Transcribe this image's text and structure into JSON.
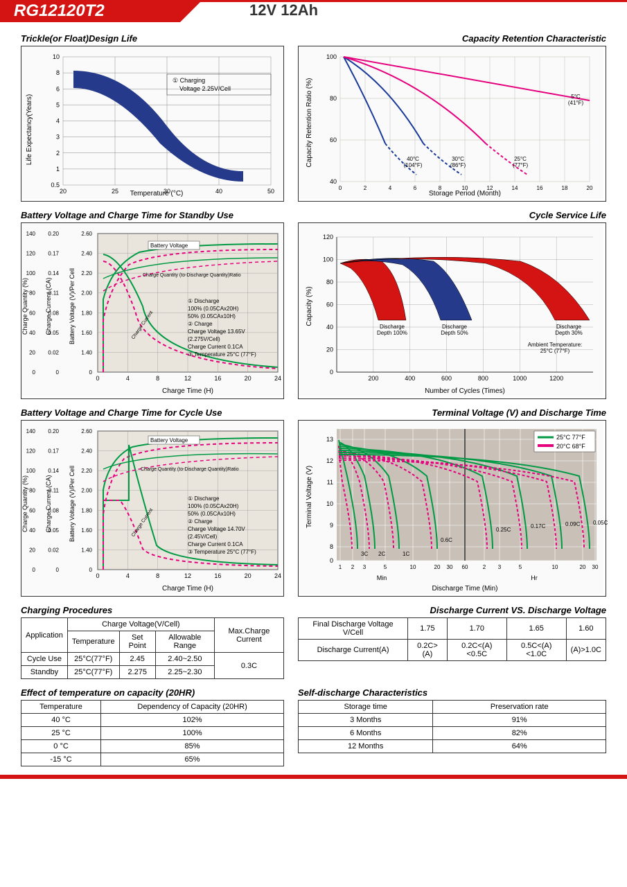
{
  "header": {
    "model": "RG12120T2",
    "spec": "12V 12Ah"
  },
  "chart1": {
    "title": "Trickle(or Float)Design Life",
    "ylabel": "Life Expectancy(Years)",
    "xlabel": "Temperature (°C)",
    "yticks": [
      "0.5",
      "1",
      "2",
      "3",
      "4",
      "5",
      "6",
      "8",
      "10"
    ],
    "xticks": [
      "20",
      "25",
      "30",
      "40",
      "50"
    ],
    "legend": "① Charging Voltage 2.25V/Cell",
    "band_color": "#263a8c",
    "grid_color": "#888",
    "bg_color": "#fafafa"
  },
  "chart2": {
    "title": "Capacity Retention Characteristic",
    "ylabel": "Capacity Retention Ratio (%)",
    "xlabel": "Storage Period (Month)",
    "yticks": [
      "40",
      "60",
      "80",
      "100"
    ],
    "xticks": [
      "0",
      "2",
      "4",
      "6",
      "8",
      "10",
      "12",
      "14",
      "16",
      "18",
      "20"
    ],
    "labels": {
      "l1": "40°C (104°F)",
      "l2": "30°C (86°F)",
      "l3": "25°C (77°F)",
      "l4": "5°C (41°F)"
    },
    "colors": {
      "c40": "#1a3a9a",
      "c30": "#1a3a9a",
      "c25": "#e5007e",
      "c5": "#e5007e"
    },
    "grid_color": "#bba"
  },
  "chart3": {
    "title": "Battery Voltage and Charge Time for Standby Use",
    "y1label": "Charge Quantity (%)",
    "y2label": "Charge Current (CA)",
    "y3label": "Battery Voltage (V)/Per Cell",
    "xlabel": "Charge Time (H)",
    "xticks": [
      "0",
      "4",
      "8",
      "12",
      "16",
      "20",
      "24"
    ],
    "y1ticks": [
      "0",
      "20",
      "40",
      "60",
      "80",
      "100",
      "120",
      "140"
    ],
    "y2ticks": [
      "0",
      "0.02",
      "0.05",
      "0.08",
      "0.11",
      "0.14",
      "0.17",
      "0.20"
    ],
    "y3ticks": [
      "0",
      "1.40",
      "1.60",
      "1.80",
      "2.00",
      "2.20",
      "2.40",
      "2.60"
    ],
    "labels": {
      "bv": "Battery Voltage",
      "cq": "Charge Quantity (to-Discharge Quantity)Ratio",
      "cc": "Charge Current"
    },
    "legend": {
      "l1": "① Discharge",
      "l1a": "100% (0.05CAx20H)",
      "l1b": "50% (0.05CAx10H)",
      "l2": "② Charge",
      "l2a": "Charge Voltage 13.65V",
      "l2b": "(2.275V/Cell)",
      "l2c": "Charge Current 0.1CA",
      "l3": "③ Temperature 25°C (77°F)"
    },
    "line_solid": "#009944",
    "line_dash": "#e5007e"
  },
  "chart4": {
    "title": "Cycle Service Life",
    "ylabel": "Capacity (%)",
    "xlabel": "Number of Cycles (Times)",
    "yticks": [
      "0",
      "20",
      "40",
      "60",
      "80",
      "100",
      "120"
    ],
    "xticks": [
      "200",
      "400",
      "600",
      "800",
      "1000",
      "1200"
    ],
    "labels": {
      "d100": "Discharge Depth 100%",
      "d50": "Discharge Depth 50%",
      "d30": "Discharge Depth 30%",
      "amb": "Ambient Temperature: 25°C (77°F)"
    },
    "colors": {
      "r": "#d41313",
      "b": "#263a8c"
    }
  },
  "chart5": {
    "title": "Battery Voltage and Charge Time for Cycle Use",
    "legend": {
      "l1": "① Discharge",
      "l1a": "100% (0.05CAx20H)",
      "l1b": "50% (0.05CAx10H)",
      "l2": "② Charge",
      "l2a": "Charge Voltage 14.70V",
      "l2b": "(2.45V/Cell)",
      "l2c": "Charge Current 0.1CA",
      "l3": "③ Temperature 25°C (77°F)"
    }
  },
  "chart6": {
    "title": "Terminal Voltage (V) and Discharge Time",
    "ylabel": "Terminal Voltage (V)",
    "xlabel": "Discharge Time (Min)",
    "yticks": [
      "0",
      "8",
      "9",
      "10",
      "11",
      "12",
      "13"
    ],
    "xmin": "Min",
    "xhr": "Hr",
    "xticks": [
      "1",
      "2",
      "3",
      "5",
      "10",
      "20",
      "30",
      "60",
      "2",
      "3",
      "5",
      "10",
      "20",
      "30"
    ],
    "legend": {
      "l1": "25°C 77°F",
      "l2": "20°C 68°F"
    },
    "curves": [
      "3C",
      "2C",
      "1C",
      "0.6C",
      "0.25C",
      "0.17C",
      "0.09C",
      "0.05C"
    ],
    "c1": "#009944",
    "c2": "#e5007e",
    "bg": "#c9c0b8"
  },
  "table1": {
    "title": "Charging Procedures",
    "headers": {
      "app": "Application",
      "cv": "Charge Voltage(V/Cell)",
      "temp": "Temperature",
      "sp": "Set Point",
      "ar": "Allowable Range",
      "max": "Max.Charge Current"
    },
    "rows": [
      {
        "app": "Cycle Use",
        "temp": "25°C(77°F)",
        "sp": "2.45",
        "ar": "2.40~2.50"
      },
      {
        "app": "Standby",
        "temp": "25°C(77°F)",
        "sp": "2.275",
        "ar": "2.25~2.30"
      }
    ],
    "max": "0.3C"
  },
  "table2": {
    "title": "Discharge Current VS. Discharge Voltage",
    "h1": "Final Discharge Voltage V/Cell",
    "h2": "Discharge Current(A)",
    "v": [
      "1.75",
      "1.70",
      "1.65",
      "1.60"
    ],
    "c": [
      "0.2C>(A)",
      "0.2C<(A)<0.5C",
      "0.5C<(A)<1.0C",
      "(A)>1.0C"
    ]
  },
  "table3": {
    "title": "Effect of temperature on capacity (20HR)",
    "h1": "Temperature",
    "h2": "Dependency of Capacity (20HR)",
    "rows": [
      [
        "40 °C",
        "102%"
      ],
      [
        "25 °C",
        "100%"
      ],
      [
        "0 °C",
        "85%"
      ],
      [
        "-15 °C",
        "65%"
      ]
    ]
  },
  "table4": {
    "title": "Self-discharge Characteristics",
    "h1": "Storage time",
    "h2": "Preservation rate",
    "rows": [
      [
        "3 Months",
        "91%"
      ],
      [
        "6 Months",
        "82%"
      ],
      [
        "12 Months",
        "64%"
      ]
    ]
  }
}
